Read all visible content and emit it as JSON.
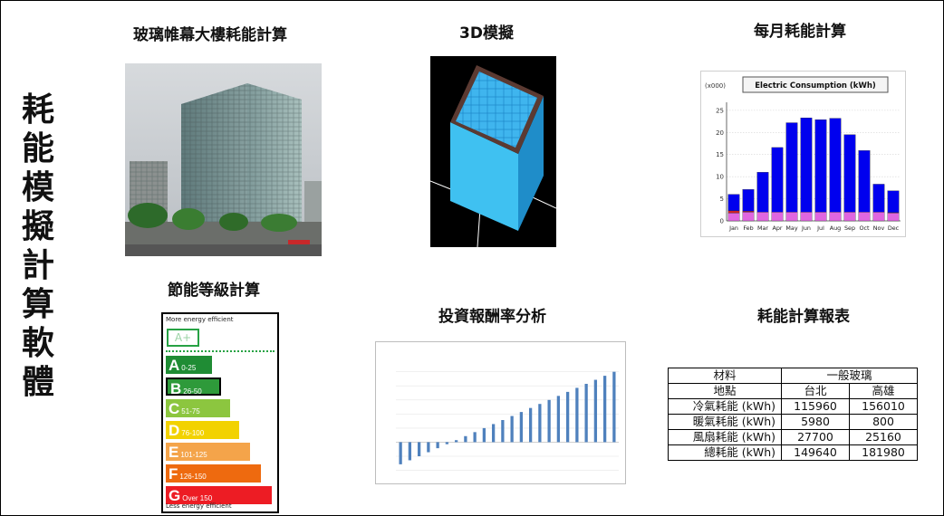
{
  "main_title": [
    "耗",
    "能",
    "模",
    "擬",
    "計",
    "算",
    "軟",
    "體"
  ],
  "sections": {
    "building": "玻璃帷幕大樓耗能計算",
    "model3d": "3D模擬",
    "monthly": "每月耗能計算",
    "rating": "節能等級計算",
    "invest": "投資報酬率分析",
    "report": "耗能計算報表"
  },
  "energy_label": {
    "top_text": "More energy efficient",
    "bottom_text": "Less energy efficient",
    "aplus": "A+",
    "grades": [
      {
        "letter": "A",
        "range": "0-25",
        "color": "#1f8c34",
        "fill": 0.42
      },
      {
        "letter": "B",
        "range": "26-50",
        "color": "#2e9a3a",
        "fill": 0.5
      },
      {
        "letter": "C",
        "range": "51-75",
        "color": "#8cc63f",
        "fill": 0.58
      },
      {
        "letter": "D",
        "range": "76-100",
        "color": "#f2d200",
        "fill": 0.66
      },
      {
        "letter": "E",
        "range": "101-125",
        "color": "#f4a44a",
        "fill": 0.76
      },
      {
        "letter": "F",
        "range": "126-150",
        "color": "#ee6a0f",
        "fill": 0.86
      },
      {
        "letter": "G",
        "range": "Over 150",
        "color": "#ed1c24",
        "fill": 0.96
      }
    ],
    "selected": "B"
  },
  "report": {
    "header": {
      "c1": "材料",
      "c2": "一般玻璃"
    },
    "location": {
      "label": "地點",
      "a": "台北",
      "b": "高雄"
    },
    "rows": [
      {
        "label": "冷氣耗能 (kWh)",
        "a": "115960",
        "b": "156010"
      },
      {
        "label": "暖氣耗能 (kWh)",
        "a": "5980",
        "b": "800"
      },
      {
        "label": "風扇耗能 (kWh)",
        "a": "27700",
        "b": "25160"
      },
      {
        "label": "總耗能 (kWh)",
        "a": "149640",
        "b": "181980"
      }
    ]
  },
  "chart_data": [
    {
      "type": "bar",
      "title": "Electric Consumption (kWh)",
      "ylabel": "(x000)",
      "categories": [
        "Jan",
        "Feb",
        "Mar",
        "Apr",
        "May",
        "Jun",
        "Jul",
        "Aug",
        "Sep",
        "Oct",
        "Nov",
        "Dec"
      ],
      "series": [
        {
          "values": [
            1.8,
            2.0,
            2.0,
            2.0,
            2.0,
            2.0,
            2.0,
            2.0,
            2.0,
            2.0,
            2.0,
            1.8
          ],
          "color": "#e066e0"
        },
        {
          "values": [
            0.5,
            0.2,
            0,
            0,
            0,
            0,
            0,
            0,
            0,
            0,
            0,
            0.1
          ],
          "color": "#cc2222"
        },
        {
          "values": [
            3.7,
            4.9,
            9.0,
            14.6,
            20.2,
            21.3,
            20.9,
            21.2,
            17.5,
            13.9,
            6.3,
            4.9
          ],
          "color": "#0000ee"
        }
      ],
      "yticks": [
        0,
        5,
        10,
        15,
        20,
        25
      ],
      "ylim": [
        0,
        26
      ]
    },
    {
      "type": "bar",
      "values": [
        -11,
        -9,
        -7,
        -5,
        -3,
        -1,
        1,
        3,
        5,
        7,
        9,
        11,
        13,
        15,
        17,
        19,
        21,
        23,
        25,
        27,
        29,
        31,
        33,
        35
      ],
      "color": "#4f81bd"
    }
  ]
}
